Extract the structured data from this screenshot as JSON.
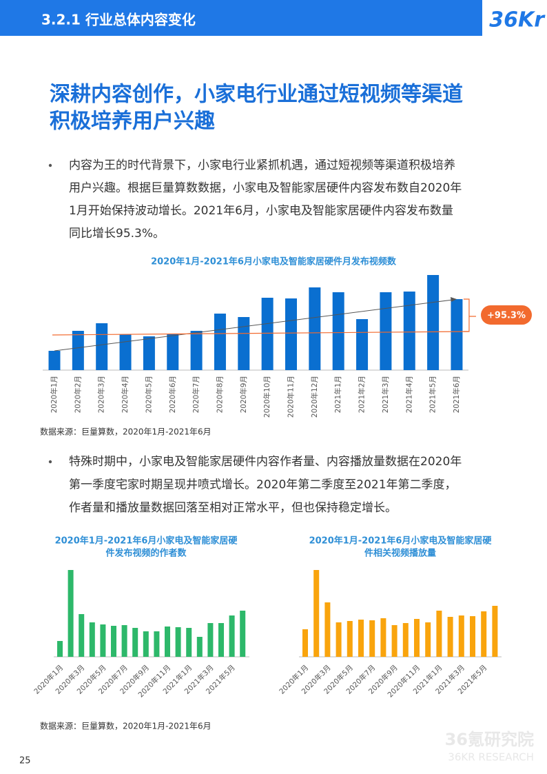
{
  "header": {
    "section": "3.2.1 行业总体内容变化",
    "logo": "36Kr"
  },
  "title": [
    "深耕内容创作，小家电行业通过短视频等渠道",
    "积极培养用户兴趣"
  ],
  "paragraphs": [
    [
      "内容为王的时代背景下，小家电行业紧抓机遇，通过短视频等渠道积极培养",
      "用户兴趣。根据巨量算数数据，小家电及智能家居硬件内容发布数自2020年",
      "1月开始保持波动增长。2021年6月，小家电及智能家居硬件内容发布数量",
      "同比增长95.3%。"
    ],
    [
      "特殊时期中，小家电及智能家居硬件内容作者量、内容播放量数据在2020年",
      "第一季度宅家时期呈现井喷式增长。2020年第二季度至2021年第二季度，",
      "作者量和播放量数据回落至相对正常水平，但也保持稳定增长。"
    ]
  ],
  "chart_data": [
    {
      "type": "bar",
      "title": [
        "2020年1月-2021年6月小家电及智能家居硬件月发布视频数"
      ],
      "color": "#0a6fd0",
      "categories": [
        "2020年1月",
        "2020年2月",
        "2020年3月",
        "2020年4月",
        "2020年5月",
        "2020年6月",
        "2020年7月",
        "2020年8月",
        "2020年9月",
        "2020年10月",
        "2020年11月",
        "2020年12月",
        "2021年1月",
        "2021年2月",
        "2021年3月",
        "2021年4月",
        "2021年5月",
        "2021年6月"
      ],
      "values": [
        28,
        57,
        68,
        52,
        49,
        53,
        57,
        82,
        77,
        105,
        104,
        120,
        113,
        74,
        113,
        114,
        138,
        103
      ],
      "annotation": "+95.3%"
    },
    {
      "type": "bar",
      "title": [
        "2020年1月-2021年6月小家电及智能家居硬",
        "件发布视频的作者数"
      ],
      "color": "#2db86a",
      "categories": [
        "2020年1月",
        null,
        "2020年3月",
        null,
        "2020年5月",
        null,
        "2020年7月",
        null,
        "2020年9月",
        null,
        "2020年11月",
        null,
        "2021年1月",
        null,
        "2021年3月",
        null,
        "2021年5月",
        null
      ],
      "values": [
        23,
        126,
        62,
        50,
        47,
        45,
        46,
        42,
        37,
        37,
        44,
        43,
        42,
        29,
        49,
        49,
        60,
        67
      ]
    },
    {
      "type": "bar",
      "title": [
        "2020年1月-2021年6月小家电及智能家居硬",
        "件相关视频播放量"
      ],
      "color": "#f9a40d",
      "categories": [
        "2020年1月",
        null,
        "2020年3月",
        null,
        "2020年5月",
        null,
        "2020年7月",
        null,
        "2020年9月",
        null,
        "2020年11月",
        null,
        "2021年1月",
        null,
        "2021年3月",
        null,
        "2021年5月",
        null
      ],
      "values": [
        40,
        126,
        79,
        50,
        52,
        54,
        53,
        56,
        46,
        49,
        55,
        50,
        67,
        58,
        60,
        59,
        66,
        74
      ]
    }
  ],
  "sources": [
    "数据来源：巨量算数，2020年1月-2021年6月",
    "数据来源：巨量算数，2020年1月-2021年6月"
  ],
  "page_number": "25",
  "watermark": [
    "36氪研究院",
    "36KR RESEARCH"
  ]
}
